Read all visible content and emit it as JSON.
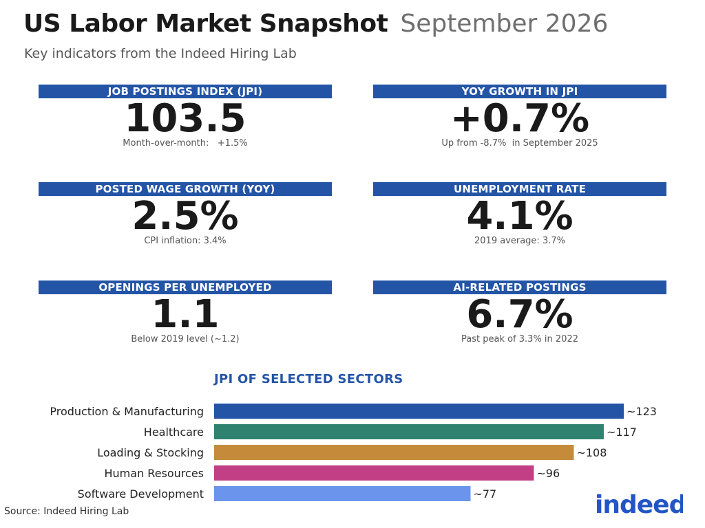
{
  "header": {
    "title": "US Labor Market Snapshot",
    "date": "September 2026",
    "subtitle": "Key indicators from the Indeed Hiring Lab"
  },
  "colors": {
    "accent": "#2354a6",
    "production": "#2354a6",
    "healthcare": "#2f8170",
    "loading": "#c58b3a",
    "hr": "#c23f86",
    "software": "#6b95ec"
  },
  "kpis": [
    {
      "label": "JOB POSTINGS INDEX (JPI)",
      "value": "103.5",
      "sub": "Month-over-month:   +1.5%"
    },
    {
      "label": "YOY GROWTH IN JPI",
      "value": "+0.7%",
      "sub": "Up from -8.7%  in September 2025"
    },
    {
      "label": "POSTED WAGE GROWTH (YOY)",
      "value": "2.5%",
      "sub": "CPI inflation: 3.4%"
    },
    {
      "label": "UNEMPLOYMENT RATE",
      "value": "4.1%",
      "sub": "2019 average: 3.7%"
    },
    {
      "label": "OPENINGS PER UNEMPLOYED",
      "value": "1.1",
      "sub": "Below 2019 level (~1.2)"
    },
    {
      "label": "AI-RELATED POSTINGS",
      "value": "6.7%",
      "sub": "Past peak of 3.3% in 2022"
    }
  ],
  "chart_data": {
    "type": "bar",
    "orientation": "horizontal",
    "title": "JPI OF SELECTED SECTORS",
    "categories": [
      "Production & Manufacturing",
      "Healthcare",
      "Loading & Stocking",
      "Human Resources",
      "Software Development"
    ],
    "values": [
      123,
      117,
      108,
      96,
      77
    ],
    "data_labels": [
      "~123",
      "~117",
      "~108",
      "~96",
      "~77"
    ],
    "colors": [
      "#2354a6",
      "#2f8170",
      "#c58b3a",
      "#c23f86",
      "#6b95ec"
    ],
    "xlim": [
      0,
      123
    ],
    "grid": false,
    "legend": "none"
  },
  "footer": {
    "source": "Source: Indeed Hiring Lab",
    "logo_text": "indeed",
    "logo_color": "#2356c4"
  }
}
